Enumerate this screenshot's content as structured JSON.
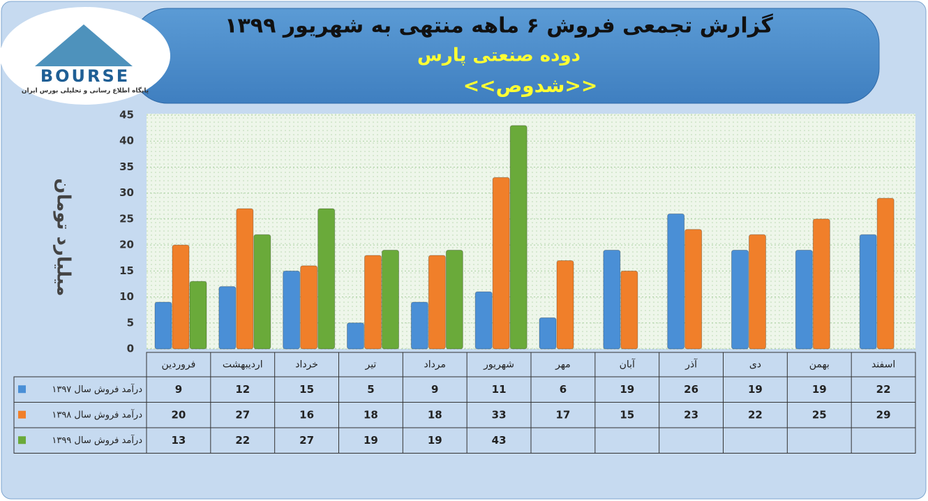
{
  "chart_data": {
    "type": "bar",
    "title": "گزارش تجمعی فروش ۶ ماهه منتهی به شهریور ۱۳۹۹",
    "subtitle": "دوده صنعتی پارس",
    "symbol": "<<شدوص>>",
    "logo": {
      "name": "BOURSE",
      "tagline": "پایگاه اطلاع رسانی و تحلیلی بورس ایران"
    },
    "y_label": "میلیارد تومان",
    "categories": [
      "فروردین",
      "اردیبهشت",
      "خرداد",
      "تیر",
      "مرداد",
      "شهریور",
      "مهر",
      "آبان",
      "آذر",
      "دی",
      "بهمن",
      "اسفند"
    ],
    "series": [
      {
        "name": "درآمد فروش سال ۱۳۹۷",
        "color": "#4a8fd6",
        "values": [
          9,
          12,
          15,
          5,
          9,
          11,
          6,
          19,
          26,
          19,
          19,
          22
        ]
      },
      {
        "name": "درآمد فروش سال ۱۳۹۸",
        "color": "#f07f2a",
        "values": [
          20,
          27,
          16,
          18,
          18,
          33,
          17,
          15,
          23,
          22,
          25,
          29
        ]
      },
      {
        "name": "درآمد فروش سال ۱۳۹۹",
        "color": "#6aaa3a",
        "values": [
          13,
          22,
          27,
          19,
          19,
          43,
          null,
          null,
          null,
          null,
          null,
          null
        ]
      }
    ],
    "ylim": [
      0,
      45
    ],
    "yticks": [
      0,
      5,
      10,
      15,
      20,
      25,
      30,
      35,
      40,
      45
    ],
    "grid": true
  }
}
